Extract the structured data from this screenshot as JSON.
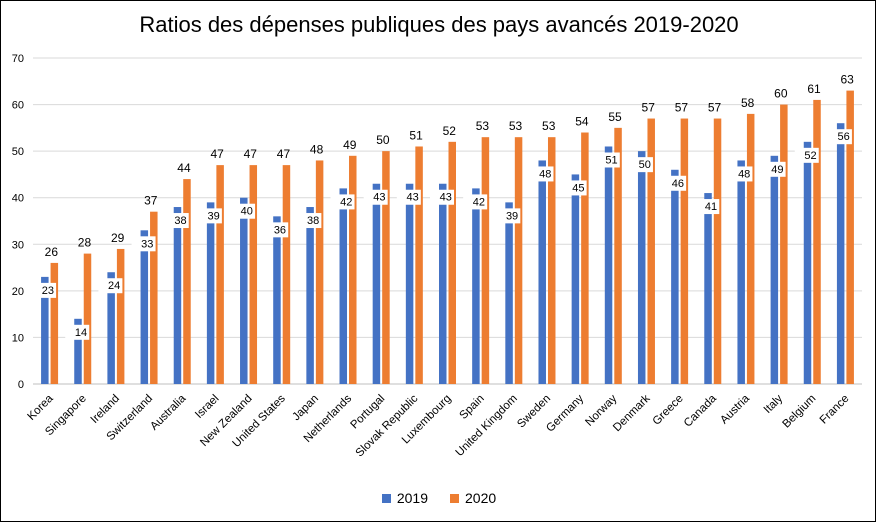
{
  "chart_data": {
    "type": "bar",
    "title": "Ratios des dépenses publiques des pays avancés 2019-2020",
    "xlabel": "",
    "ylabel": "",
    "ylim": [
      0,
      70
    ],
    "yticks": [
      0,
      10,
      20,
      30,
      40,
      50,
      60,
      70
    ],
    "grid": true,
    "legend_position": "bottom",
    "categories": [
      "Korea",
      "Singapore",
      "Ireland",
      "Switzerland",
      "Australia",
      "Israel",
      "New Zealand",
      "United States",
      "Japan",
      "Netherlands",
      "Portugal",
      "Slovak Republic",
      "Luxembourg",
      "Spain",
      "United Kingdom",
      "Sweden",
      "Germany",
      "Norway",
      "Denmark",
      "Greece",
      "Canada",
      "Austria",
      "Italy",
      "Belgium",
      "France"
    ],
    "series": [
      {
        "name": "2019",
        "color": "#4472c4",
        "values": [
          23,
          14,
          24,
          33,
          38,
          39,
          40,
          36,
          38,
          42,
          43,
          43,
          43,
          42,
          39,
          48,
          45,
          51,
          50,
          46,
          41,
          48,
          49,
          52,
          56
        ]
      },
      {
        "name": "2020",
        "color": "#ed7d31",
        "values": [
          26,
          28,
          29,
          37,
          44,
          47,
          47,
          47,
          48,
          49,
          50,
          51,
          52,
          53,
          53,
          53,
          54,
          55,
          57,
          57,
          57,
          58,
          60,
          61,
          63
        ]
      }
    ]
  }
}
